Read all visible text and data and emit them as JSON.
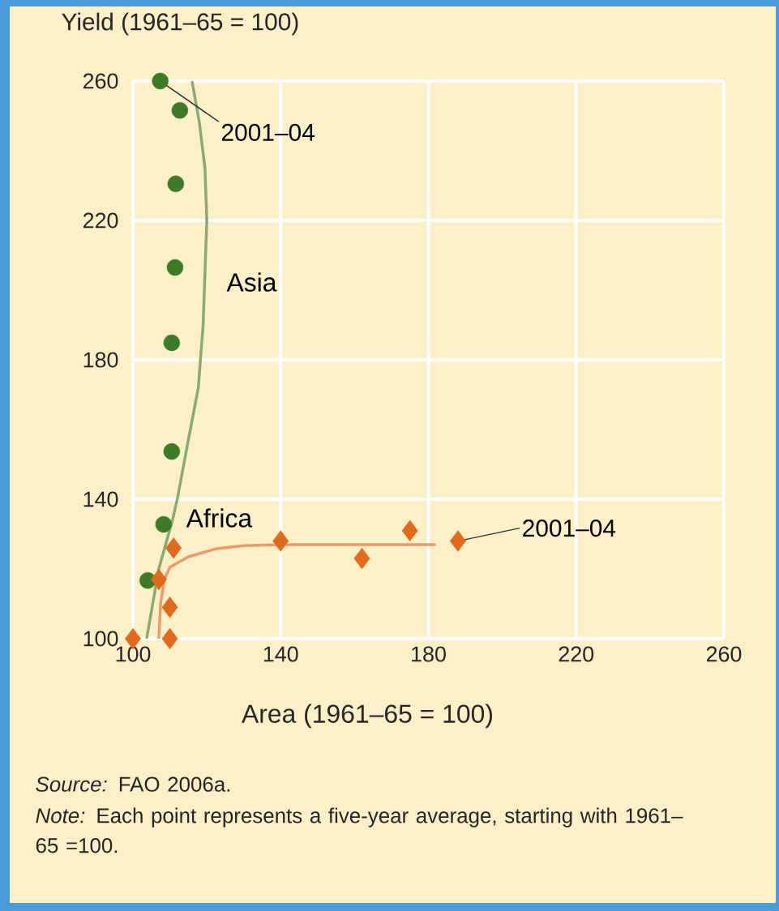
{
  "chart_data": {
    "type": "scatter",
    "xlabel": "Area (1961–65 = 100)",
    "ylabel": "Yield (1961–65 = 100)",
    "xlim": [
      100,
      260
    ],
    "ylim": [
      100,
      260
    ],
    "xticks": [
      100,
      140,
      180,
      220,
      260
    ],
    "yticks": [
      100,
      140,
      180,
      220,
      260
    ],
    "grid": true,
    "series": [
      {
        "name": "Asia",
        "marker": "circle",
        "color": "#3f7a26",
        "x": [
          104,
          108.3,
          110.5,
          110.5,
          111.4,
          111.6,
          112.7,
          107.4
        ],
        "values": [
          116.7,
          132.8,
          153.7,
          184.9,
          206.5,
          230.5,
          251.6,
          260
        ]
      },
      {
        "type": "line",
        "marker": "none",
        "color": "#8aaa70",
        "x": [
          103.7,
          107,
          110.7,
          112,
          115,
          117.7,
          119,
          120,
          119.5,
          118,
          116
        ],
        "values": [
          100,
          120,
          134,
          140,
          157,
          172,
          190,
          220,
          235,
          248,
          260
        ]
      },
      {
        "name": "Africa",
        "marker": "diamond",
        "color": "#e06a1e",
        "x": [
          100,
          110,
          110,
          107,
          111,
          140,
          162,
          175,
          188
        ],
        "values": [
          100,
          100,
          109,
          117,
          126,
          128,
          123,
          131,
          128
        ]
      },
      {
        "type": "line",
        "marker": "none",
        "color": "#eb9a6a",
        "x": [
          107,
          107.5,
          108.5,
          110,
          115,
          122.5,
          130,
          140,
          160,
          182
        ],
        "values": [
          100,
          110,
          117,
          120.5,
          123.5,
          125.8,
          126.7,
          127,
          127,
          127
        ]
      }
    ],
    "annotations": [
      {
        "text": "2001–04",
        "x": 107.4,
        "y": 260
      },
      {
        "text": "2001–04",
        "x": 188,
        "y": 128
      },
      "*Source:* FAO 2006a.",
      "*Note:* Each point represents a five-year average, starting with 1961–65 =100."
    ]
  }
}
